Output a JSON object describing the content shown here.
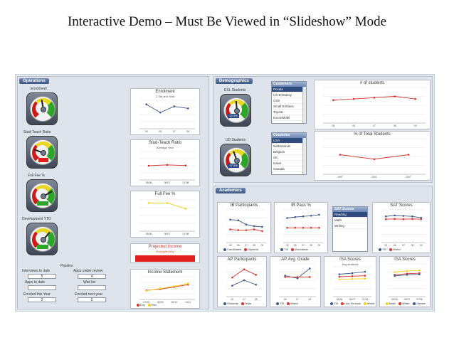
{
  "slide": {
    "title": "Interactive Demo – Must Be Viewed in “Slideshow” Mode"
  },
  "operations": {
    "header": "Operations",
    "gauges": [
      {
        "label": "Enrolment",
        "value": ""
      },
      {
        "label": "Stud-Teach Ratio",
        "value": ""
      },
      {
        "label": "Full Fee %",
        "value": ""
      },
      {
        "label": "Development YTD",
        "value": ""
      }
    ],
    "pipeline": {
      "header": "Pipeline",
      "fields": [
        {
          "label": "Interviews to date",
          "value": "5"
        },
        {
          "label": "Apps under review",
          "value": "4"
        },
        {
          "label": "Apps to date",
          "value": ""
        },
        {
          "label": "Wait list",
          "value": ""
        },
        {
          "label": "Enroled this Year",
          "value": "2"
        },
        {
          "label": "Enroled next year",
          "value": "0"
        }
      ]
    },
    "charts": [
      {
        "title": "Enrolment",
        "subtitle": "2 Std and Year",
        "xlabels": [
          "05",
          "06",
          "07",
          "08"
        ]
      },
      {
        "title": "Stud-Teach Ratio",
        "subtitle": "Average Year",
        "xlabels": [
          "05/06",
          "06/07",
          "07/08"
        ]
      },
      {
        "title": "Full Fee %",
        "subtitle": "",
        "xlabels": [
          "05/06",
          "06/07",
          "07/08"
        ]
      },
      {
        "title": "Income Statement",
        "subtitle": "",
        "xlabels": [
          "07/08",
          "08/09",
          "09/10",
          "10/11"
        ]
      }
    ],
    "projected_income": {
      "title": "Projected Income",
      "subtitle": "Example Only"
    },
    "income_legend": [
      "Exp",
      "Rev"
    ]
  },
  "demographics": {
    "header": "Demographics",
    "gauges": [
      {
        "label": "ESL Students",
        "value": "22.3%"
      },
      {
        "label": "US Students",
        "value": "17.5%"
      }
    ],
    "customers": {
      "header": "Customers",
      "items": [
        "Private",
        "US Embassy",
        "CSS",
        "Small Embass",
        "Toyota",
        "ExxonMobil"
      ],
      "selected_index": 0
    },
    "countries": {
      "header": "Countries",
      "items": [
        "USA",
        "Netherlands",
        "Belgium",
        "UK",
        "Israel",
        "Canada"
      ],
      "selected_index": 0
    },
    "charts": [
      {
        "title": "# of students",
        "xlabels": [
          "05",
          "06",
          "07",
          "08",
          "09"
        ]
      },
      {
        "title": "% of Total Students",
        "xlabels": [
          "1997",
          "2001",
          "2007"
        ]
      }
    ]
  },
  "academics": {
    "header": "Academics",
    "sat_list": {
      "header": "SAT Scores",
      "items": [
        "Reading",
        "Math",
        "Writing"
      ],
      "selected_index": 0
    },
    "charts": [
      {
        "title": "IB Participants",
        "subtitle": "",
        "legend": [
          "Candidates",
          "Diploma"
        ]
      },
      {
        "title": "IB Pass %",
        "subtitle": "",
        "legend": [
          "TIS",
          "Worldwide"
        ]
      },
      {
        "title": "SAT Scores",
        "subtitle": "",
        "legend": [
          "TIS",
          "World"
        ]
      },
      {
        "title": "AP Participants",
        "subtitle": "",
        "legend": [
          "Students",
          "Tests"
        ]
      },
      {
        "title": "AP Avg. Grade",
        "subtitle": "",
        "legend": [
          "TIS",
          "World"
        ]
      },
      {
        "title": "ISA Scores",
        "subtitle": "Avg students",
        "legend": [
          "TIS",
          "Like Schools",
          "World"
        ]
      },
      {
        "title": "ISA Scores",
        "subtitle": "",
        "legend": [
          "Math",
          "Writer",
          "Literate"
        ]
      }
    ]
  },
  "colors": {
    "navy": "#2e4b7f",
    "red": "#d6352f",
    "blue": "#3b5b8f",
    "yellow": "#f2d21a",
    "gray": "#8a8f99",
    "green": "#2ea52a"
  },
  "chart_data": [
    {
      "type": "line",
      "title": "Enrolment",
      "categories": [
        "05",
        "06",
        "07",
        "08"
      ],
      "series": [
        {
          "values": [
            310,
            290,
            305,
            300
          ]
        }
      ],
      "ylim": [
        250,
        320
      ]
    },
    {
      "type": "line",
      "title": "Stud-Teach Ratio",
      "categories": [
        "05/06",
        "06/07",
        "07/08"
      ],
      "series": [
        {
          "values": [
            7.0,
            7.4,
            7.1
          ]
        }
      ],
      "ylim": [
        0,
        14
      ]
    },
    {
      "type": "line",
      "title": "Full Fee %",
      "categories": [
        "05/06",
        "06/07",
        "07/08"
      ],
      "series": [
        {
          "values": [
            90,
            90,
            72
          ]
        }
      ],
      "ylim": [
        0,
        100
      ]
    },
    {
      "type": "line",
      "title": "Income Statement",
      "categories": [
        "07/08",
        "08/09",
        "09/10",
        "10/11"
      ],
      "series": [
        {
          "name": "Exp",
          "values": [
            40,
            45,
            55,
            65
          ]
        },
        {
          "name": "Rev",
          "values": [
            38,
            48,
            58,
            70
          ]
        }
      ],
      "ylim": [
        0,
        100
      ]
    },
    {
      "type": "line",
      "title": "# of students",
      "categories": [
        "05",
        "06",
        "07",
        "08",
        "09"
      ],
      "series": [
        {
          "values": [
            90,
            95,
            100,
            105,
            95
          ]
        }
      ],
      "ylim": [
        0,
        140
      ]
    },
    {
      "type": "line",
      "title": "% of Total Students",
      "categories": [
        "1997",
        "2001",
        "2007"
      ],
      "series": [
        {
          "values": [
            22,
            17,
            22
          ]
        }
      ],
      "ylim": [
        0,
        40
      ]
    },
    {
      "type": "line",
      "title": "IB Participants",
      "categories": [
        "05",
        "06",
        "07",
        "08",
        "09"
      ],
      "series": [
        {
          "name": "Candidates",
          "values": [
            70,
            68,
            55,
            50,
            48
          ]
        },
        {
          "name": "Diploma",
          "values": [
            40,
            38,
            38,
            40,
            35
          ]
        }
      ],
      "ylim": [
        0,
        100
      ]
    },
    {
      "type": "line",
      "title": "IB Pass %",
      "categories": [
        "05",
        "06",
        "07",
        "08",
        "09"
      ],
      "series": [
        {
          "name": "TIS",
          "values": [
            75,
            78,
            80,
            82,
            85
          ]
        },
        {
          "name": "Worldwide",
          "values": [
            45,
            45,
            45,
            45,
            45
          ]
        }
      ],
      "ylim": [
        0,
        100
      ]
    },
    {
      "type": "line",
      "title": "SAT Scores",
      "categories": [
        "05",
        "06",
        "07",
        "08",
        "09"
      ],
      "series": [
        {
          "name": "TIS",
          "values": [
            560,
            580,
            570,
            560,
            530
          ]
        },
        {
          "name": "World",
          "values": [
            500,
            505,
            500,
            505,
            500
          ]
        }
      ],
      "ylim": [
        0,
        700
      ]
    },
    {
      "type": "line",
      "title": "AP Participants",
      "categories": [
        "06",
        "07",
        "08"
      ],
      "series": [
        {
          "name": "Students",
          "values": [
            20,
            30,
            22
          ]
        },
        {
          "name": "Tests",
          "values": [
            35,
            50,
            40
          ]
        }
      ],
      "ylim": [
        0,
        60
      ]
    },
    {
      "type": "line",
      "title": "AP Avg. Grade",
      "categories": [
        "06",
        "07",
        "08"
      ],
      "series": [
        {
          "name": "TIS",
          "values": [
            3.2,
            2.8,
            4.3
          ]
        },
        {
          "name": "World",
          "values": [
            3.0,
            3.0,
            3.0
          ]
        }
      ],
      "ylim": [
        0,
        5
      ]
    },
    {
      "type": "line",
      "title": "ISA Scores",
      "categories": [
        "05/06",
        "06/07",
        "07/08"
      ],
      "series": [
        {
          "name": "TIS",
          "values": [
            450,
            470,
            500
          ]
        },
        {
          "name": "Like Schools",
          "values": [
            400,
            410,
            420
          ]
        },
        {
          "name": "World",
          "values": [
            350,
            355,
            360
          ]
        }
      ],
      "ylim": [
        0,
        600
      ]
    },
    {
      "type": "line",
      "title": "ISA Scores",
      "categories": [
        "05/06",
        "06/07",
        "07/08"
      ],
      "series": [
        {
          "name": "Math",
          "values": [
            450,
            470,
            480
          ]
        },
        {
          "name": "Writer",
          "values": [
            400,
            420,
            430
          ]
        },
        {
          "name": "Literate",
          "values": [
            380,
            400,
            410
          ]
        }
      ],
      "ylim": [
        0,
        600
      ]
    }
  ]
}
